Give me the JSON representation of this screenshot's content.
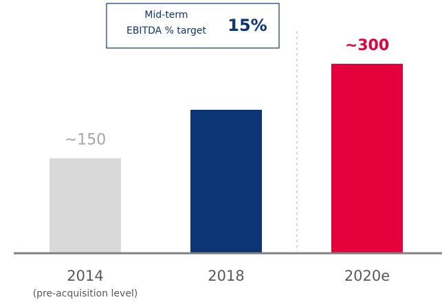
{
  "chart_data": {
    "type": "bar",
    "categories": [
      "2014",
      "2018",
      "2020e"
    ],
    "category_notes": [
      "(pre-acquisition level)",
      null,
      null
    ],
    "values": [
      150,
      227,
      300
    ],
    "value_labels": [
      "~150",
      null,
      "~300"
    ],
    "colors": [
      "#d9d9d9",
      "#0b3574",
      "#e4003b"
    ],
    "annotation": {
      "lines": [
        "Mid-term",
        "EBITDA % target"
      ],
      "highlight": "15%"
    }
  }
}
